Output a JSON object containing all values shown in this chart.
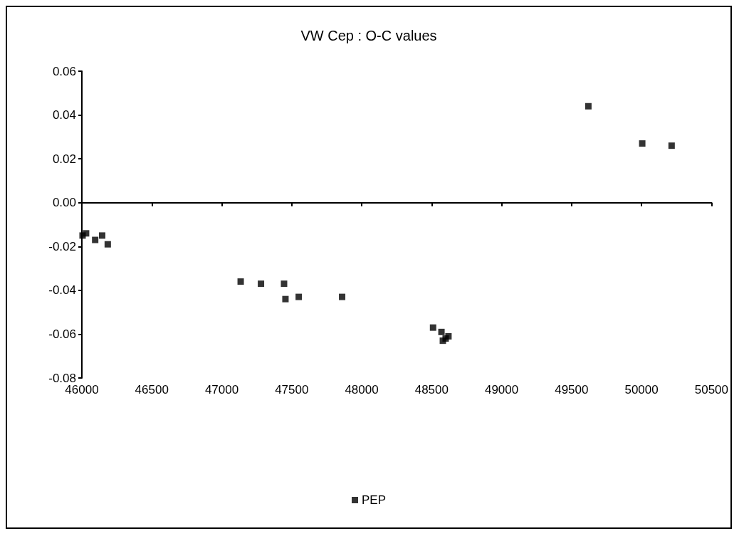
{
  "chart_data": {
    "type": "scatter",
    "title": "VW Cep : O-C values",
    "series": [
      {
        "name": "PEP",
        "color": "#000000",
        "x": [
          46005,
          46030,
          46095,
          46145,
          46185,
          47135,
          47280,
          47445,
          47455,
          47550,
          47860,
          48510,
          48570,
          48580,
          48600,
          48620,
          49620,
          50005,
          50215
        ],
        "values": [
          -0.015,
          -0.014,
          -0.017,
          -0.015,
          -0.019,
          -0.036,
          -0.037,
          -0.037,
          -0.044,
          -0.043,
          -0.043,
          -0.057,
          -0.059,
          -0.063,
          -0.062,
          -0.061,
          0.044,
          0.027,
          0.026
        ]
      }
    ],
    "xlim": [
      46000,
      50500
    ],
    "xticks": [
      46000,
      46500,
      47000,
      47500,
      48000,
      48500,
      49000,
      49500,
      50000,
      50500
    ],
    "ylim": [
      -0.08,
      0.06
    ],
    "yticks": [
      {
        "value": -0.08,
        "label": "-0.08"
      },
      {
        "value": -0.06,
        "label": "-0.06"
      },
      {
        "value": -0.04,
        "label": "-0.04"
      },
      {
        "value": -0.02,
        "label": "-0.02"
      },
      {
        "value": 0,
        "label": "0.00"
      },
      {
        "value": 0.02,
        "label": "0.02"
      },
      {
        "value": 0.04,
        "label": "0.04"
      },
      {
        "value": 0.06,
        "label": "0.06"
      }
    ],
    "legend": "bottom",
    "marker": "square"
  }
}
